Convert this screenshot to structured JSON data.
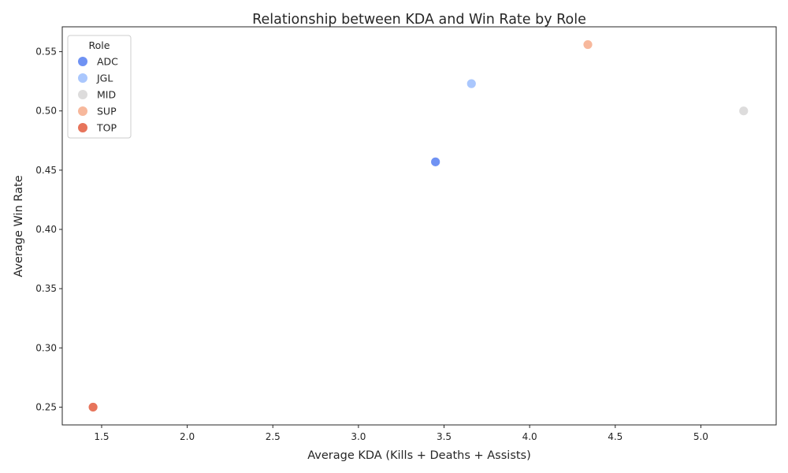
{
  "chart_data": {
    "type": "scatter",
    "title": "Relationship between KDA and Win Rate by Role",
    "xlabel": "Average KDA (Kills + Deaths + Assists)",
    "ylabel": "Average Win Rate",
    "xlim": [
      1.27,
      5.44
    ],
    "ylim": [
      0.235,
      0.571
    ],
    "xticks": [
      "1.5",
      "2.0",
      "2.5",
      "3.0",
      "3.5",
      "4.0",
      "4.5",
      "5.0"
    ],
    "yticks": [
      "0.25",
      "0.30",
      "0.35",
      "0.40",
      "0.45",
      "0.50",
      "0.55"
    ],
    "grid": false,
    "legend": {
      "title": "Role",
      "placement": "top-left"
    },
    "series": [
      {
        "name": "ADC",
        "color": "#6f92f3",
        "x": [
          3.45
        ],
        "y": [
          0.457
        ]
      },
      {
        "name": "JGL",
        "color": "#aac7fd",
        "x": [
          3.66
        ],
        "y": [
          0.523
        ]
      },
      {
        "name": "MID",
        "color": "#dddcdc",
        "x": [
          5.25
        ],
        "y": [
          0.5
        ]
      },
      {
        "name": "SUP",
        "color": "#f7b89c",
        "x": [
          4.34
        ],
        "y": [
          0.556
        ]
      },
      {
        "name": "TOP",
        "color": "#e7745b",
        "x": [
          1.45
        ],
        "y": [
          0.25
        ]
      }
    ]
  }
}
